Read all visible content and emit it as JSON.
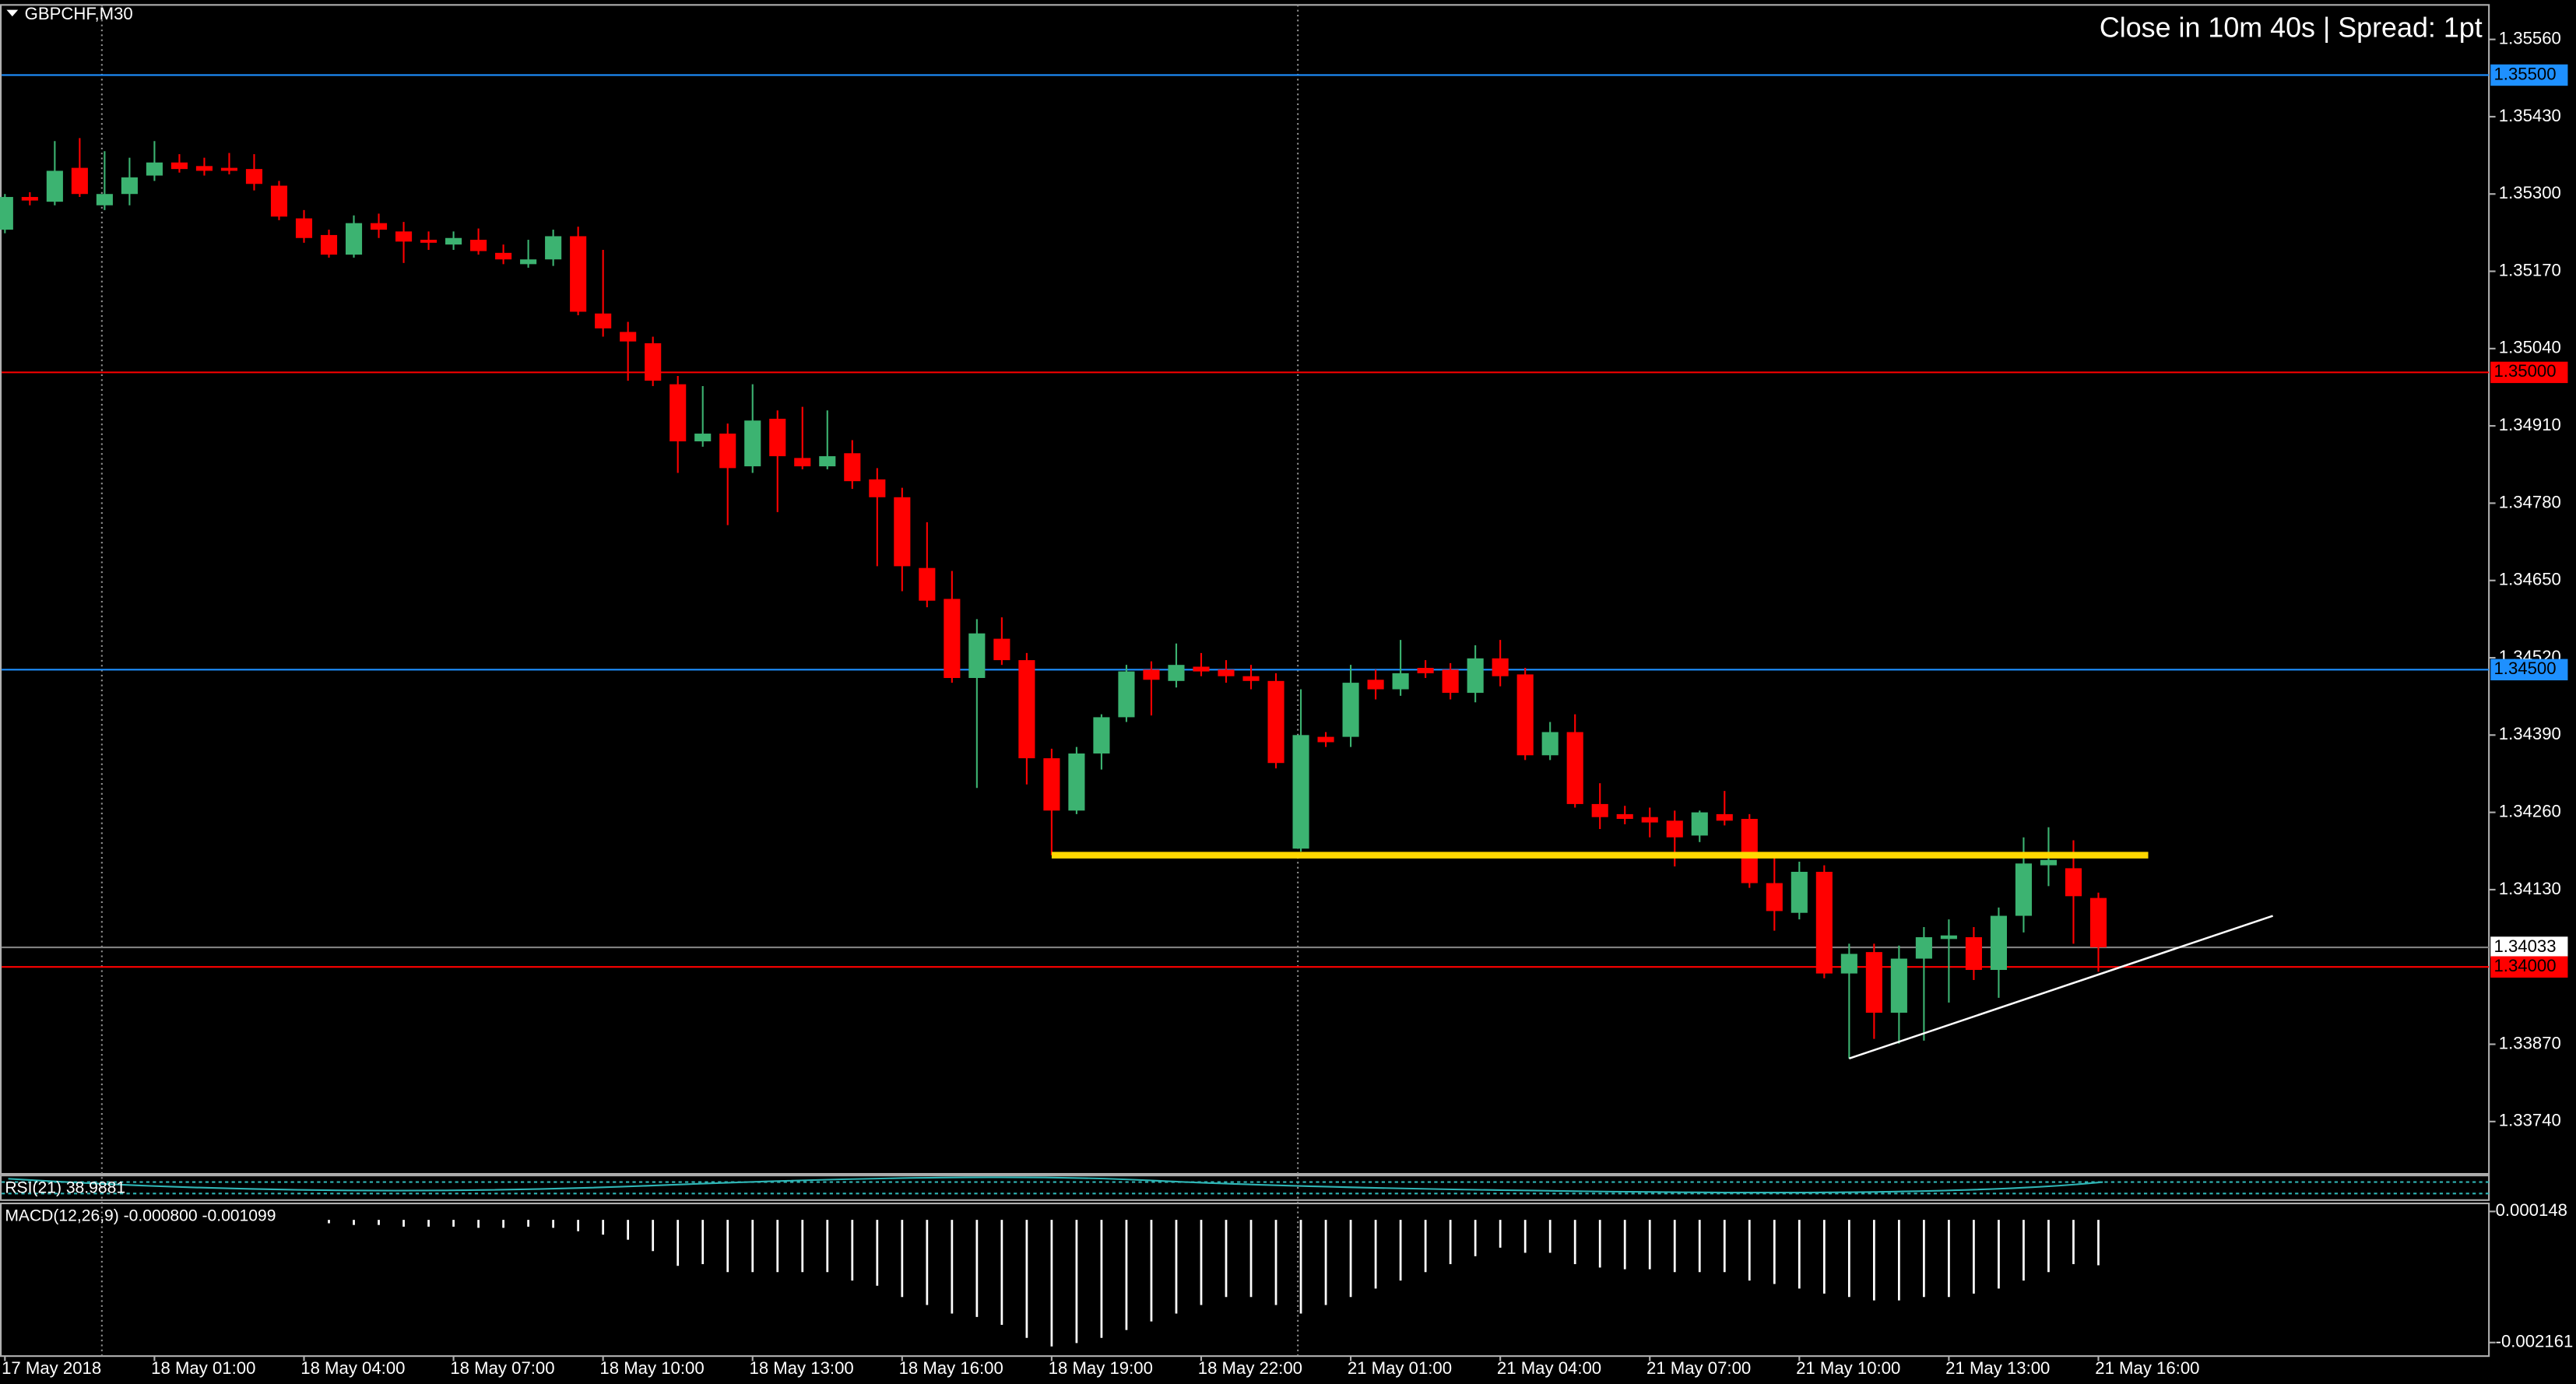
{
  "chart_data": [
    {
      "type": "candlestick",
      "symbol": "GBPCHF,M30",
      "status": "Close in 10m 40s | Spread: 1pt",
      "up_color": "#3cb371",
      "down_color": "#ff0000",
      "categories": [
        "17 May 2018",
        null,
        null,
        null,
        null,
        null,
        "18 May 01:00",
        null,
        null,
        null,
        null,
        null,
        "18 May 04:00",
        null,
        null,
        null,
        null,
        null,
        "18 May 07:00",
        null,
        null,
        null,
        null,
        null,
        "18 May 10:00",
        null,
        null,
        null,
        null,
        null,
        "18 May 13:00",
        null,
        null,
        null,
        null,
        null,
        "18 May 16:00",
        null,
        null,
        null,
        null,
        null,
        "18 May 19:00",
        null,
        null,
        null,
        null,
        null,
        "18 May 22:00",
        null,
        null,
        null,
        null,
        null,
        "21 May 01:00",
        null,
        null,
        null,
        null,
        null,
        "21 May 04:00",
        null,
        null,
        null,
        null,
        null,
        "21 May 07:00",
        null,
        null,
        null,
        null,
        null,
        "21 May 10:00",
        null,
        null,
        null,
        null,
        null,
        "21 May 13:00",
        null,
        null,
        null,
        null,
        null,
        "21 May 16:00"
      ],
      "open": [
        1.3524,
        1.35295,
        1.35287,
        1.35344,
        1.35281,
        1.353,
        1.35331,
        1.35353,
        1.35347,
        1.35344,
        1.35342,
        1.35314,
        1.35259,
        1.35231,
        1.35198,
        1.35251,
        1.35237,
        1.35223,
        1.35215,
        1.35223,
        1.35201,
        1.35182,
        1.3519,
        1.35229,
        1.35099,
        1.35068,
        1.35049,
        1.3498,
        1.34884,
        1.34897,
        1.34842,
        1.34922,
        1.34856,
        1.34842,
        1.34864,
        1.3482,
        1.3479,
        1.34671,
        1.34619,
        1.34486,
        1.34552,
        1.34516,
        1.34351,
        1.34263,
        1.34359,
        1.3442,
        1.345,
        1.34481,
        1.34505,
        1.345,
        1.34489,
        1.34481,
        1.34199,
        1.34387,
        1.34387,
        1.34483,
        1.34467,
        1.34503,
        1.345,
        1.34461,
        1.34519,
        1.34492,
        1.34356,
        1.34395,
        1.34274,
        1.34257,
        1.34252,
        1.34246,
        1.34221,
        1.34257,
        1.34249,
        1.34141,
        1.34091,
        1.3416,
        1.33989,
        1.34025,
        1.33923,
        1.34014,
        1.34047,
        1.3405,
        1.33995,
        1.34086,
        1.34171,
        1.34166,
        1.34116
      ],
      "high": [
        1.353,
        1.35303,
        1.35389,
        1.35394,
        1.35372,
        1.35361,
        1.35389,
        1.35367,
        1.35361,
        1.35369,
        1.35367,
        1.35322,
        1.35273,
        1.3524,
        1.35264,
        1.35267,
        1.35253,
        1.35237,
        1.35237,
        1.35242,
        1.35215,
        1.35223,
        1.3524,
        1.35245,
        1.35206,
        1.35085,
        1.3506,
        1.34994,
        1.34977,
        1.34914,
        1.3498,
        1.34936,
        1.34942,
        1.34936,
        1.34886,
        1.34839,
        1.34806,
        1.34748,
        1.34666,
        1.34585,
        1.34588,
        1.34528,
        1.34367,
        1.3437,
        1.34425,
        1.34508,
        1.34514,
        1.34544,
        1.34528,
        1.34516,
        1.34508,
        1.34494,
        1.34467,
        1.34395,
        1.34508,
        1.345,
        1.3455,
        1.34516,
        1.34511,
        1.34541,
        1.3455,
        1.34503,
        1.34412,
        1.34425,
        1.34309,
        1.34271,
        1.34268,
        1.34263,
        1.34263,
        1.34296,
        1.34257,
        1.34185,
        1.34177,
        1.34171,
        1.34039,
        1.34039,
        1.34036,
        1.34067,
        1.3408,
        1.34067,
        1.341,
        1.34218,
        1.34235,
        1.34213,
        1.34125
      ],
      "low": [
        1.35234,
        1.35281,
        1.35281,
        1.35295,
        1.35273,
        1.35281,
        1.35322,
        1.35336,
        1.35331,
        1.35333,
        1.35306,
        1.35256,
        1.35218,
        1.35193,
        1.35193,
        1.35226,
        1.35184,
        1.35206,
        1.35206,
        1.35198,
        1.35182,
        1.35176,
        1.35179,
        1.35096,
        1.3506,
        1.34986,
        1.34977,
        1.34831,
        1.34875,
        1.34743,
        1.34831,
        1.34765,
        1.34837,
        1.34837,
        1.34804,
        1.34674,
        1.34632,
        1.34605,
        1.34478,
        1.34301,
        1.34508,
        1.34307,
        1.34188,
        1.34257,
        1.34332,
        1.34412,
        1.34423,
        1.3447,
        1.34489,
        1.34478,
        1.34467,
        1.34334,
        1.34194,
        1.3437,
        1.3437,
        1.3445,
        1.34456,
        1.34486,
        1.3445,
        1.34445,
        1.34472,
        1.34348,
        1.34348,
        1.34268,
        1.34232,
        1.3424,
        1.34218,
        1.34169,
        1.3421,
        1.34238,
        1.34133,
        1.34061,
        1.3408,
        1.33981,
        1.33846,
        1.33879,
        1.33871,
        1.33876,
        1.3394,
        1.33978,
        1.33948,
        1.34058,
        1.34136,
        1.34039,
        1.33992
      ],
      "close": [
        1.35295,
        1.35289,
        1.35339,
        1.353,
        1.353,
        1.35328,
        1.35353,
        1.35342,
        1.35339,
        1.35339,
        1.35317,
        1.35262,
        1.35226,
        1.35198,
        1.35251,
        1.3524,
        1.3522,
        1.35218,
        1.35226,
        1.35204,
        1.3519,
        1.3519,
        1.35229,
        1.35102,
        1.35074,
        1.35052,
        1.34986,
        1.34884,
        1.34897,
        1.34839,
        1.34919,
        1.34859,
        1.34842,
        1.34859,
        1.34817,
        1.3479,
        1.34674,
        1.34616,
        1.34486,
        1.34561,
        1.34516,
        1.34351,
        1.34263,
        1.34359,
        1.3442,
        1.34497,
        1.34483,
        1.34508,
        1.34497,
        1.34489,
        1.34481,
        1.34343,
        1.3439,
        1.34378,
        1.34478,
        1.34467,
        1.34494,
        1.34494,
        1.34461,
        1.34519,
        1.34489,
        1.34356,
        1.34395,
        1.34274,
        1.34252,
        1.34249,
        1.34243,
        1.34218,
        1.3426,
        1.34246,
        1.34141,
        1.34094,
        1.3416,
        1.33989,
        1.34022,
        1.33923,
        1.34014,
        1.3405,
        1.34053,
        1.33995,
        1.34086,
        1.34174,
        1.3418,
        1.34119,
        1.34033
      ],
      "ylim": [
        1.33652,
        1.35618
      ],
      "yticks": [
        {
          "value": 1.3556,
          "label": "1.35560"
        },
        {
          "value": 1.3543,
          "label": "1.35430"
        },
        {
          "value": 1.353,
          "label": "1.35300"
        },
        {
          "value": 1.3517,
          "label": "1.35170"
        },
        {
          "value": 1.3504,
          "label": "1.35040"
        },
        {
          "value": 1.3491,
          "label": "1.34910"
        },
        {
          "value": 1.3478,
          "label": "1.34780"
        },
        {
          "value": 1.3465,
          "label": "1.34650"
        },
        {
          "value": 1.3452,
          "label": "1.34520"
        },
        {
          "value": 1.3439,
          "label": "1.34390"
        },
        {
          "value": 1.3426,
          "label": "1.34260"
        },
        {
          "value": 1.3413,
          "label": "1.34130"
        },
        {
          "value": 1.3387,
          "label": "1.33870"
        },
        {
          "value": 1.3374,
          "label": "1.33740"
        }
      ],
      "levels": [
        {
          "value": 1.355,
          "label": "1.35500",
          "color": "#1e90ff",
          "label_fill": "#1e90ff",
          "text_color": "#000000"
        },
        {
          "value": 1.35,
          "label": "1.35000",
          "color": "#ff0000",
          "label_fill": "#ff0000",
          "text_color": "#000000"
        },
        {
          "value": 1.345,
          "label": "1.34500",
          "color": "#1e90ff",
          "label_fill": "#1e90ff",
          "text_color": "#000000"
        },
        {
          "value": 1.34033,
          "label": "1.34033",
          "color": "#808080",
          "label_fill": "#ffffff",
          "text_color": "#000000"
        },
        {
          "value": 1.34,
          "label": "1.34000",
          "color": "#ff0000",
          "label_fill": "#ff0000",
          "text_color": "#000000"
        }
      ],
      "drawings": [
        {
          "from": [
            42,
            1.34188
          ],
          "to": [
            86,
            1.34188
          ],
          "color": "#ffd700",
          "width": 4
        },
        {
          "from": [
            74,
            1.33846
          ],
          "to": [
            91,
            1.34086
          ],
          "color": "#ffffff",
          "width": 1.2
        }
      ]
    },
    {
      "type": "label",
      "title": "RSI(21) 38.9881"
    },
    {
      "type": "bar",
      "title": "MACD(12,26,9) -0.000800 -0.001099",
      "color": "#ffffff",
      "values": [
        null,
        null,
        null,
        null,
        null,
        null,
        null,
        null,
        null,
        null,
        null,
        null,
        null,
        -6e-05,
        -9e-05,
        -9e-05,
        -0.00012,
        -0.00012,
        -0.00012,
        -0.00014,
        -0.00014,
        -0.00012,
        -0.00014,
        -0.0002,
        -0.00026,
        -0.00035,
        -0.00055,
        -0.00081,
        -0.00078,
        -0.00092,
        -0.00092,
        -0.00092,
        -0.00092,
        -0.00092,
        -0.00107,
        -0.00116,
        -0.00136,
        -0.0015,
        -0.00165,
        -0.00171,
        -0.00185,
        -0.00208,
        -0.00223,
        -0.00217,
        -0.00208,
        -0.00194,
        -0.00179,
        -0.00165,
        -0.0015,
        -0.00136,
        -0.00136,
        -0.0015,
        -0.00165,
        -0.0015,
        -0.00136,
        -0.00121,
        -0.00107,
        -0.00092,
        -0.00078,
        -0.00064,
        -0.00049,
        -0.00058,
        -0.00058,
        -0.00078,
        -0.00084,
        -0.00087,
        -0.00087,
        -0.00092,
        -0.00092,
        -0.00092,
        -0.00107,
        -0.00113,
        -0.00121,
        -0.0013,
        -0.00136,
        -0.00142,
        -0.00142,
        -0.00136,
        -0.00136,
        -0.0013,
        -0.00121,
        -0.00107,
        -0.00092,
        -0.00078,
        -0.0008
      ],
      "ylim": [
        -0.0024,
        0.00029
      ],
      "yticks": [
        0.000148,
        -0.002161
      ]
    }
  ]
}
